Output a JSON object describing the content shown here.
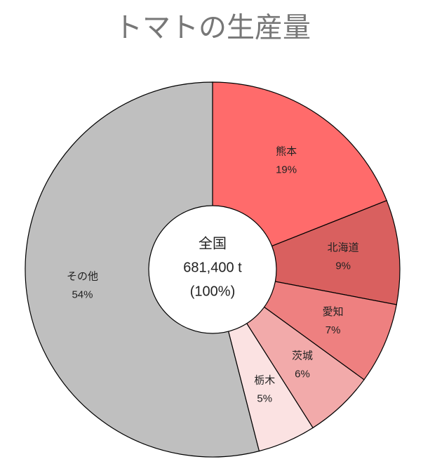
{
  "chart_data": {
    "type": "pie",
    "title": "トマトの生産量",
    "categories": [
      "熊本",
      "北海道",
      "愛知",
      "茨城",
      "栃木",
      "その他"
    ],
    "values": [
      19,
      9,
      7,
      6,
      5,
      54
    ],
    "value_labels": [
      "19%",
      "9%",
      "7%",
      "6%",
      "5%",
      "54%"
    ],
    "colors": [
      "#ff6b6b",
      "#d9605f",
      "#ee8080",
      "#f2aaaa",
      "#fbe2e2",
      "#bfbfbf"
    ],
    "center_text": [
      "全国",
      "681,400 t",
      "(100%)"
    ]
  }
}
